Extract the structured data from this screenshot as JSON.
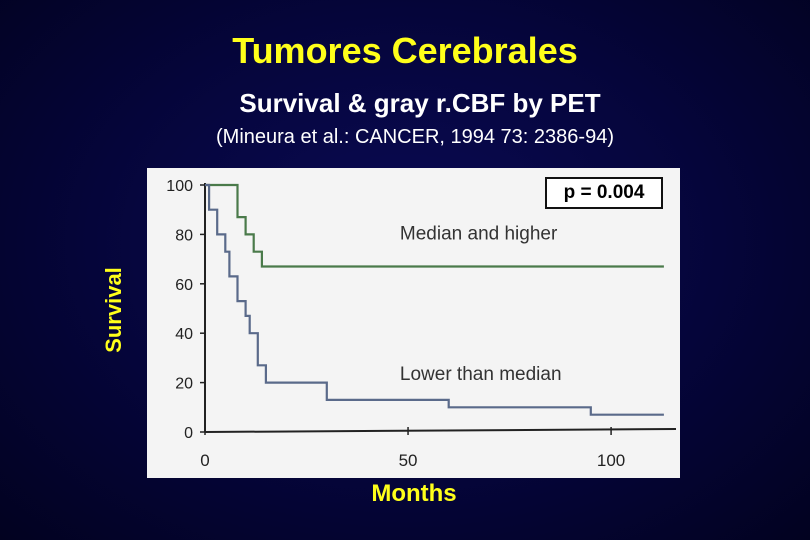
{
  "slide": {
    "title": "Tumores Cerebrales",
    "subtitle": "Survival & gray r.CBF by PET",
    "citation": "(Mineura et al.:  CANCER, 1994 73: 2386-94)",
    "p_value": "p = 0.004"
  },
  "colors": {
    "background": "#05053a",
    "title": "#ffff1a",
    "plot_bg": "#f4f4f4",
    "high_line": "#4a7a4a",
    "low_line": "#5a6a8a",
    "axis": "#222222"
  },
  "chart_data": {
    "type": "line",
    "title": "",
    "xlabel": "Months",
    "ylabel": "Survival",
    "xlim": [
      0,
      115
    ],
    "ylim": [
      0,
      100
    ],
    "x_ticks": [
      0,
      50,
      100
    ],
    "y_ticks": [
      0,
      20,
      40,
      60,
      80,
      100
    ],
    "grid": false,
    "step": true,
    "series": [
      {
        "name": "Median and higher",
        "color": "#4a7a4a",
        "points": [
          [
            0,
            100
          ],
          [
            8,
            100
          ],
          [
            8,
            87
          ],
          [
            10,
            87
          ],
          [
            10,
            80
          ],
          [
            12,
            80
          ],
          [
            12,
            73
          ],
          [
            14,
            73
          ],
          [
            14,
            67
          ],
          [
            113,
            67
          ]
        ]
      },
      {
        "name": "Lower than median",
        "color": "#5a6a8a",
        "points": [
          [
            0,
            100
          ],
          [
            1,
            100
          ],
          [
            1,
            90
          ],
          [
            3,
            90
          ],
          [
            3,
            80
          ],
          [
            5,
            80
          ],
          [
            5,
            73
          ],
          [
            6,
            73
          ],
          [
            6,
            63
          ],
          [
            8,
            63
          ],
          [
            8,
            53
          ],
          [
            10,
            53
          ],
          [
            10,
            47
          ],
          [
            11,
            47
          ],
          [
            11,
            40
          ],
          [
            13,
            40
          ],
          [
            13,
            27
          ],
          [
            15,
            27
          ],
          [
            15,
            20
          ],
          [
            30,
            20
          ],
          [
            30,
            13
          ],
          [
            60,
            13
          ],
          [
            60,
            10
          ],
          [
            95,
            10
          ],
          [
            95,
            7
          ],
          [
            113,
            7
          ]
        ]
      }
    ],
    "annotations": [
      "Median and higher",
      "Lower than median"
    ]
  }
}
